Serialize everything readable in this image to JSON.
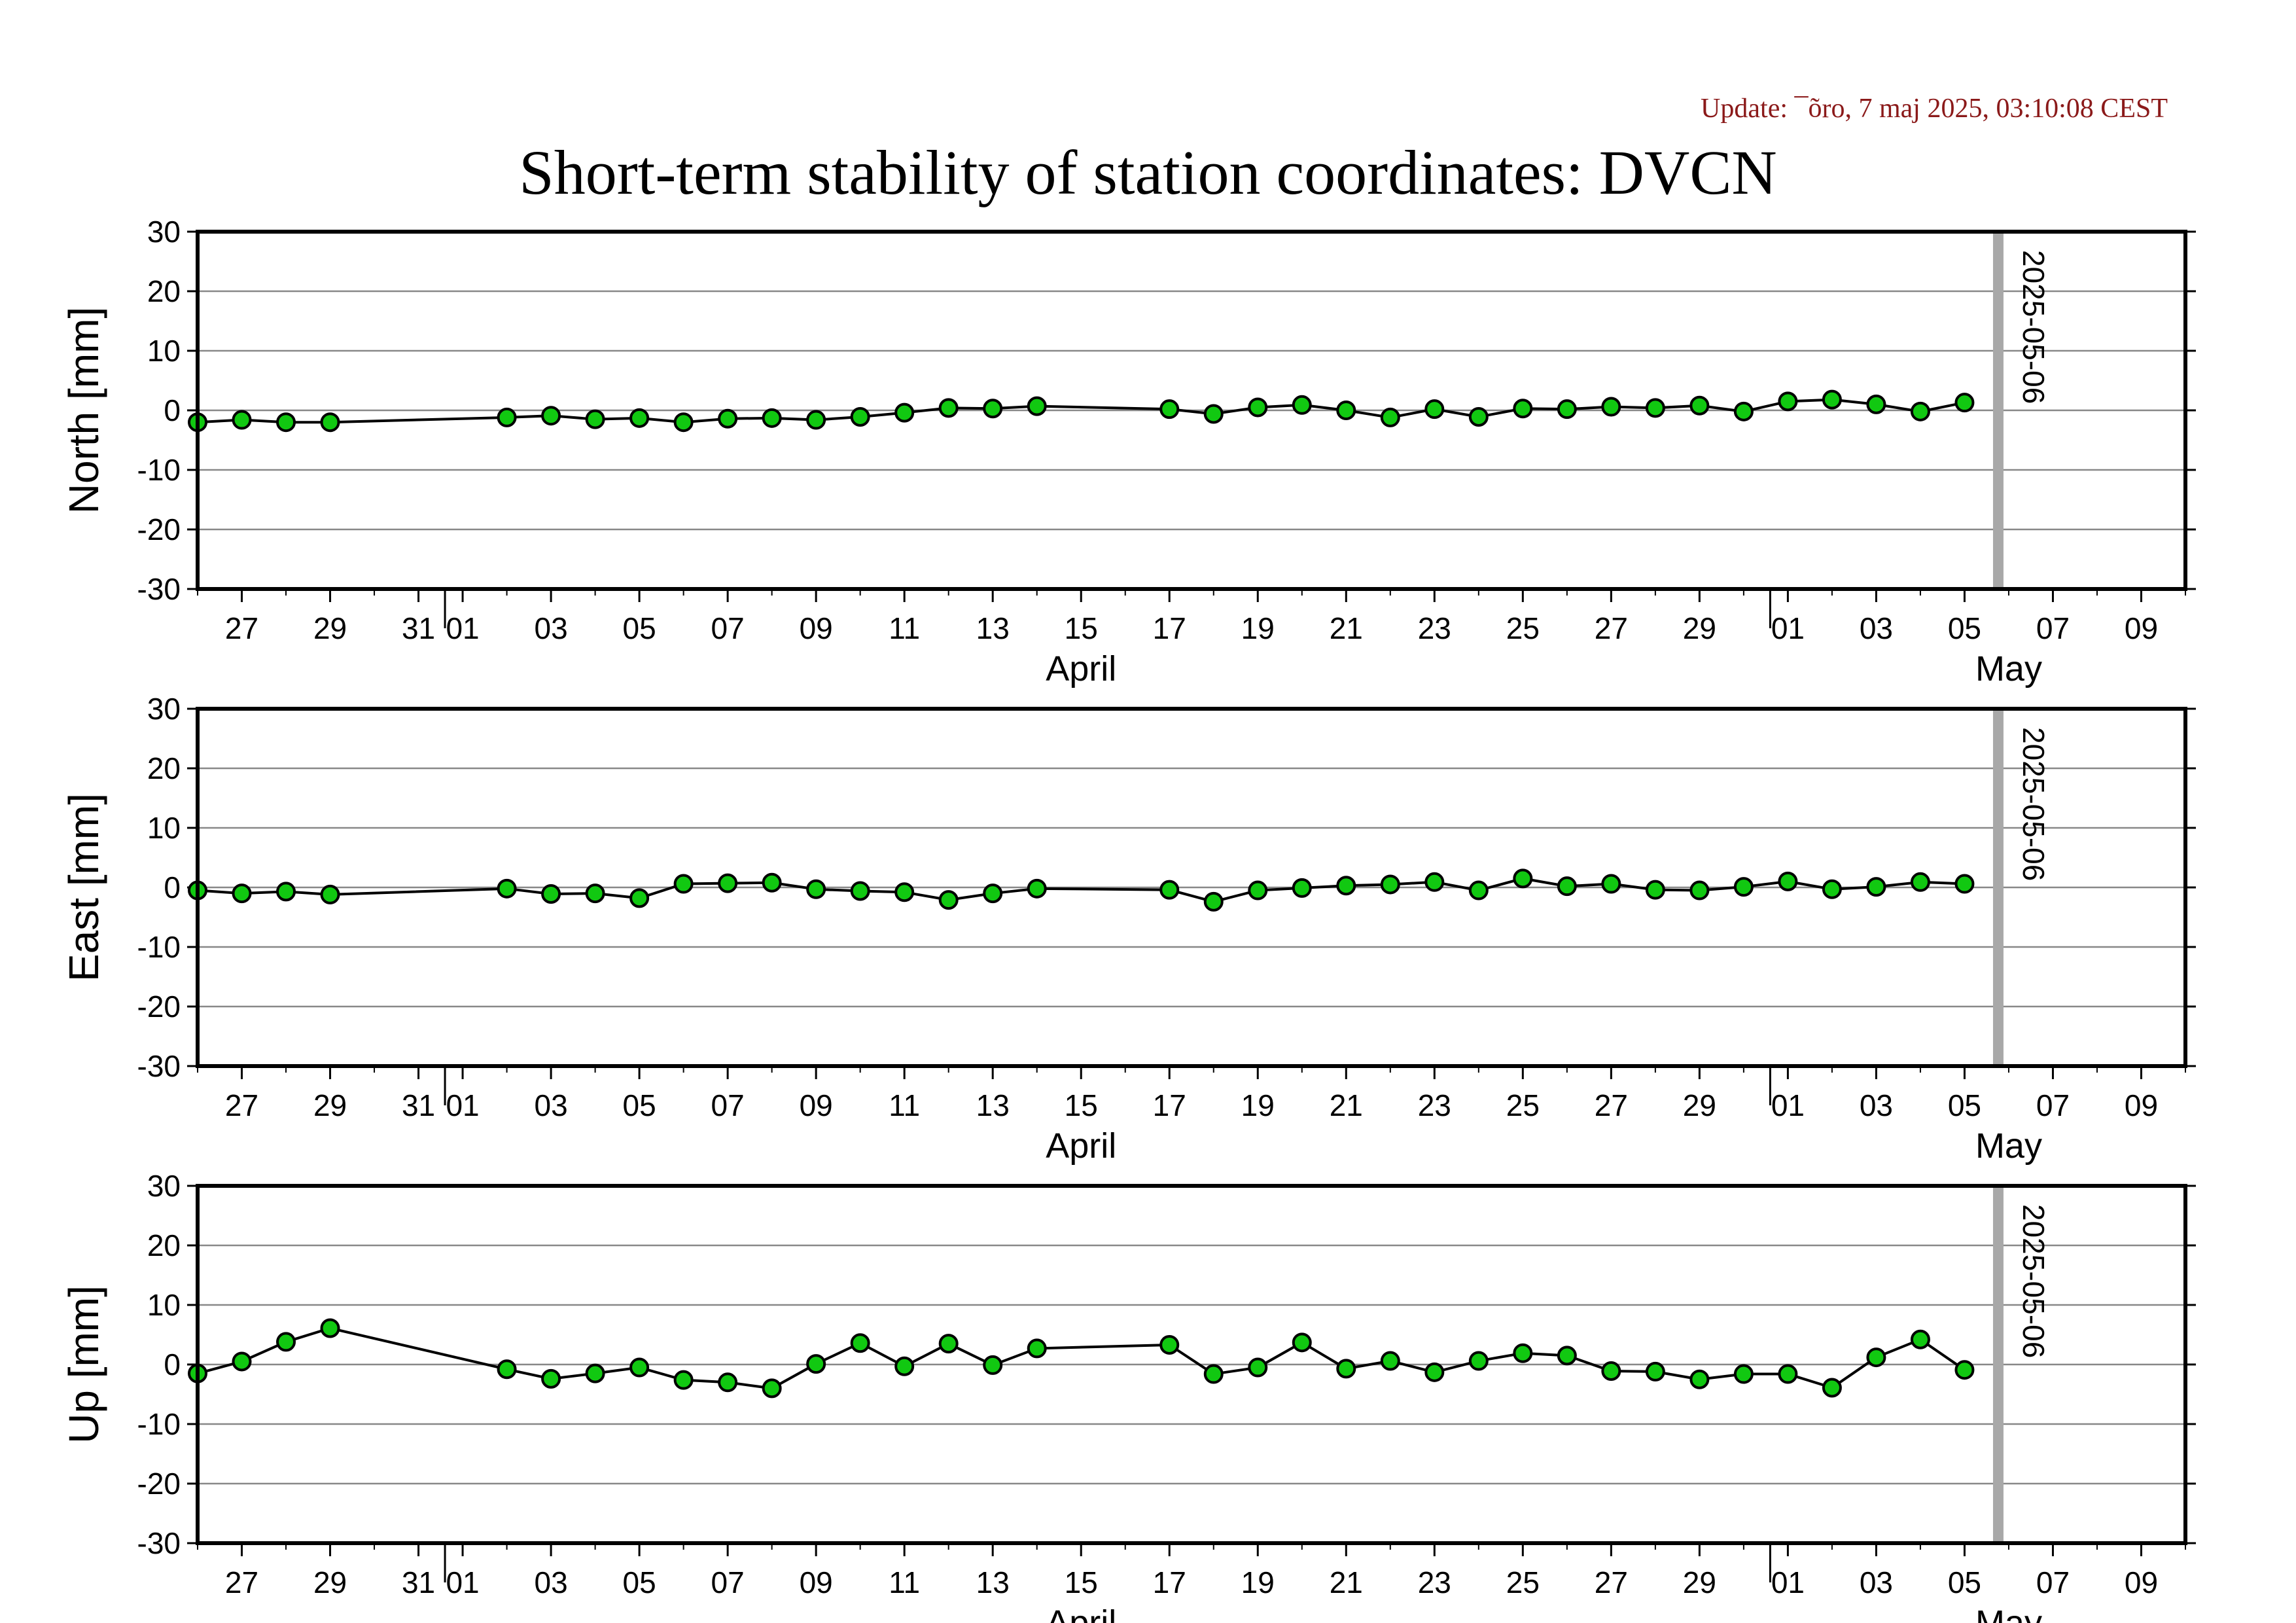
{
  "update_text": "Update: ¯õro, 7 maj 2025, 03:10:08 CEST",
  "title": "Short-term stability of station coordinates: DVCN",
  "colors": {
    "update_text": "#8b1a1a",
    "marker_fill": "#11c811",
    "line": "#000000",
    "grid": "#888888",
    "marker_line": "#a8a8a8"
  },
  "chart_data": [
    {
      "type": "scatter",
      "ylabel": "North [mm]",
      "ylim": [
        -30,
        30
      ],
      "yticks": [
        -30,
        -20,
        -10,
        0,
        10,
        20,
        30
      ],
      "x_dates": [
        "2025-03-26",
        "2025-03-27",
        "2025-03-28",
        "2025-03-29",
        "2025-04-02",
        "2025-04-03",
        "2025-04-04",
        "2025-04-05",
        "2025-04-06",
        "2025-04-07",
        "2025-04-08",
        "2025-04-09",
        "2025-04-10",
        "2025-04-11",
        "2025-04-12",
        "2025-04-13",
        "2025-04-14",
        "2025-04-17",
        "2025-04-18",
        "2025-04-19",
        "2025-04-20",
        "2025-04-21",
        "2025-04-22",
        "2025-04-23",
        "2025-04-24",
        "2025-04-25",
        "2025-04-26",
        "2025-04-27",
        "2025-04-28",
        "2025-04-29",
        "2025-04-30",
        "2025-05-01",
        "2025-05-02",
        "2025-05-03",
        "2025-05-04",
        "2025-05-05"
      ],
      "values": [
        -2.0,
        -1.6,
        -2.0,
        -2.0,
        -1.2,
        -0.9,
        -1.5,
        -1.3,
        -2.0,
        -1.4,
        -1.3,
        -1.6,
        -1.1,
        -0.4,
        0.4,
        0.3,
        0.7,
        0.2,
        -0.6,
        0.5,
        0.9,
        0.0,
        -1.2,
        0.2,
        -1.1,
        0.3,
        0.2,
        0.6,
        0.4,
        0.8,
        -0.2,
        1.5,
        1.8,
        1.0,
        -0.2,
        1.3
      ]
    },
    {
      "type": "scatter",
      "ylabel": "East [mm]",
      "ylim": [
        -30,
        30
      ],
      "yticks": [
        -30,
        -20,
        -10,
        0,
        10,
        20,
        30
      ],
      "x_dates": [
        "2025-03-26",
        "2025-03-27",
        "2025-03-28",
        "2025-03-29",
        "2025-04-02",
        "2025-04-03",
        "2025-04-04",
        "2025-04-05",
        "2025-04-06",
        "2025-04-07",
        "2025-04-08",
        "2025-04-09",
        "2025-04-10",
        "2025-04-11",
        "2025-04-12",
        "2025-04-13",
        "2025-04-14",
        "2025-04-17",
        "2025-04-18",
        "2025-04-19",
        "2025-04-20",
        "2025-04-21",
        "2025-04-22",
        "2025-04-23",
        "2025-04-24",
        "2025-04-25",
        "2025-04-26",
        "2025-04-27",
        "2025-04-28",
        "2025-04-29",
        "2025-04-30",
        "2025-05-01",
        "2025-05-02",
        "2025-05-03",
        "2025-05-04",
        "2025-05-05"
      ],
      "values": [
        -0.5,
        -1.0,
        -0.7,
        -1.2,
        -0.2,
        -1.1,
        -1.0,
        -1.8,
        0.6,
        0.7,
        0.8,
        -0.3,
        -0.6,
        -0.8,
        -2.1,
        -1.0,
        -0.2,
        -0.4,
        -2.4,
        -0.5,
        -0.1,
        0.3,
        0.5,
        0.9,
        -0.5,
        1.5,
        0.2,
        0.6,
        -0.4,
        -0.5,
        0.1,
        1.0,
        -0.3,
        0.1,
        0.9,
        0.6
      ]
    },
    {
      "type": "scatter",
      "ylabel": "Up [mm]",
      "ylim": [
        -30,
        30
      ],
      "yticks": [
        -30,
        -20,
        -10,
        0,
        10,
        20,
        30
      ],
      "x_dates": [
        "2025-03-26",
        "2025-03-27",
        "2025-03-28",
        "2025-03-29",
        "2025-04-02",
        "2025-04-03",
        "2025-04-04",
        "2025-04-05",
        "2025-04-06",
        "2025-04-07",
        "2025-04-08",
        "2025-04-09",
        "2025-04-10",
        "2025-04-11",
        "2025-04-12",
        "2025-04-13",
        "2025-04-14",
        "2025-04-17",
        "2025-04-18",
        "2025-04-19",
        "2025-04-20",
        "2025-04-21",
        "2025-04-22",
        "2025-04-23",
        "2025-04-24",
        "2025-04-25",
        "2025-04-26",
        "2025-04-27",
        "2025-04-28",
        "2025-04-29",
        "2025-04-30",
        "2025-05-01",
        "2025-05-02",
        "2025-05-03",
        "2025-05-04",
        "2025-05-05"
      ],
      "values": [
        -1.5,
        0.5,
        3.8,
        6.1,
        -0.8,
        -2.4,
        -1.5,
        -0.5,
        -2.6,
        -3.0,
        -4.0,
        0.1,
        3.6,
        -0.3,
        3.5,
        -0.1,
        2.7,
        3.3,
        -1.6,
        -0.5,
        3.7,
        -0.7,
        0.6,
        -1.3,
        0.6,
        1.9,
        1.5,
        -1.1,
        -1.2,
        -2.5,
        -1.6,
        -1.6,
        -3.9,
        1.2,
        4.2,
        -0.9
      ]
    }
  ],
  "x_axis": {
    "range_dates": [
      "2025-03-26",
      "2025-05-10"
    ],
    "day_labels": [
      {
        "date": "2025-03-27",
        "text": "27"
      },
      {
        "date": "2025-03-29",
        "text": "29"
      },
      {
        "date": "2025-03-31",
        "text": "31"
      },
      {
        "date": "2025-04-01",
        "text": "01"
      },
      {
        "date": "2025-04-03",
        "text": "03"
      },
      {
        "date": "2025-04-05",
        "text": "05"
      },
      {
        "date": "2025-04-07",
        "text": "07"
      },
      {
        "date": "2025-04-09",
        "text": "09"
      },
      {
        "date": "2025-04-11",
        "text": "11"
      },
      {
        "date": "2025-04-13",
        "text": "13"
      },
      {
        "date": "2025-04-15",
        "text": "15"
      },
      {
        "date": "2025-04-17",
        "text": "17"
      },
      {
        "date": "2025-04-19",
        "text": "19"
      },
      {
        "date": "2025-04-21",
        "text": "21"
      },
      {
        "date": "2025-04-23",
        "text": "23"
      },
      {
        "date": "2025-04-25",
        "text": "25"
      },
      {
        "date": "2025-04-27",
        "text": "27"
      },
      {
        "date": "2025-04-29",
        "text": "29"
      },
      {
        "date": "2025-05-01",
        "text": "01"
      },
      {
        "date": "2025-05-03",
        "text": "03"
      },
      {
        "date": "2025-05-05",
        "text": "05"
      },
      {
        "date": "2025-05-07",
        "text": "07"
      },
      {
        "date": "2025-05-09",
        "text": "09"
      }
    ],
    "month_labels": [
      {
        "date": "2025-04-15",
        "text": "April"
      },
      {
        "date": "2025-05-06",
        "text": "May"
      }
    ],
    "month_boundaries": [
      "2025-04-01",
      "2025-05-01"
    ]
  },
  "marker": {
    "date": "2025-05-06",
    "label": "2025-05-06"
  }
}
